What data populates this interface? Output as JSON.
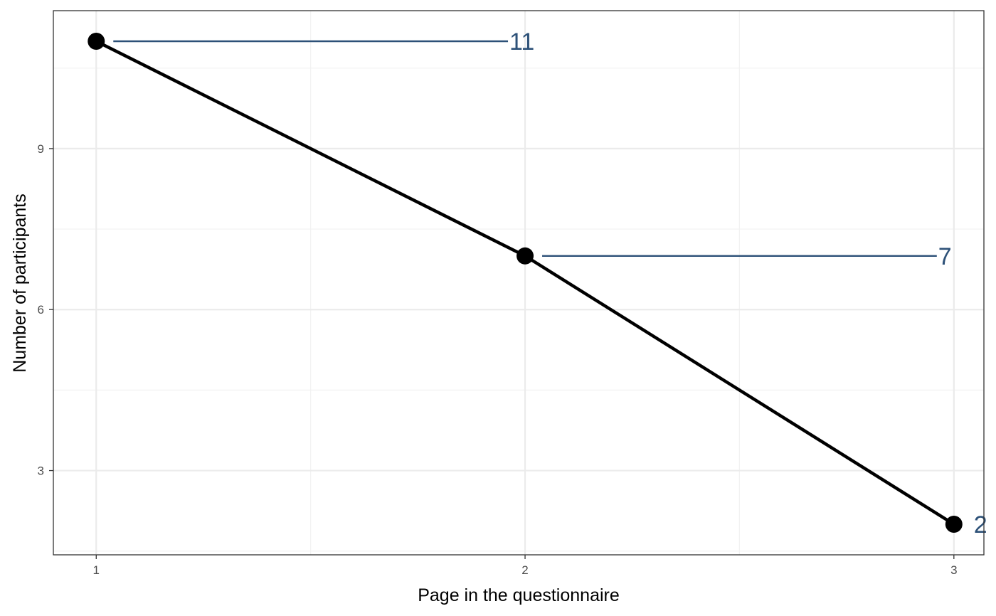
{
  "chart_data": {
    "type": "line",
    "title": "",
    "xlabel": "Page in the questionnaire",
    "ylabel": "Number of participants",
    "x": [
      1,
      2,
      3
    ],
    "values": [
      11,
      7,
      2
    ],
    "x_ticks": [
      "1",
      "2",
      "3"
    ],
    "y_ticks": [
      "3",
      "6",
      "9"
    ],
    "xlim": [
      0.9,
      3.07
    ],
    "ylim": [
      1.43,
      11.57
    ],
    "grid": true,
    "legend": "none",
    "line_color": "#000000",
    "point_color": "#000000",
    "label_color": "#2d5178",
    "data_labels": [
      "11",
      "7",
      "2"
    ]
  }
}
